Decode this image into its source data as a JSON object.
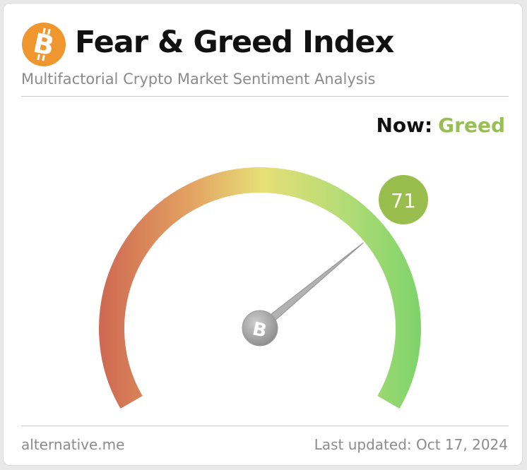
{
  "header": {
    "title": "Fear & Greed Index",
    "subtitle": "Multifactorial Crypto Market Sentiment Analysis",
    "logo_icon": "bitcoin-icon",
    "logo_color": "#f0962e"
  },
  "status": {
    "now_label": "Now:",
    "now_value": "Greed",
    "now_color": "#98bf55"
  },
  "gauge": {
    "value": 71,
    "value_text": "71",
    "min": 0,
    "max": 100,
    "badge_color": "#9abe4e",
    "colors": {
      "fear": "#cf6a52",
      "neutral": "#e7df77",
      "greed": "#7ed36b"
    },
    "hub_icon": "bitcoin-icon"
  },
  "footer": {
    "source": "alternative.me",
    "last_updated": "Last updated: Oct 17, 2024"
  }
}
